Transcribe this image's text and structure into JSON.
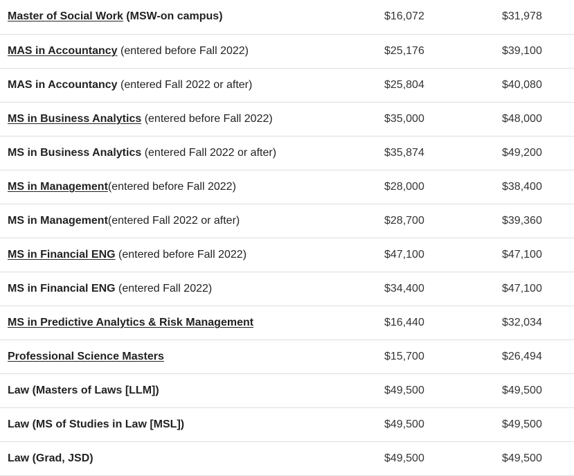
{
  "rows": [
    {
      "name": "Master of Social Work",
      "linked": true,
      "note": " (MSW-on campus)",
      "note_bold": true,
      "note_underlined": false,
      "resident": "$16,072",
      "nonresident": "$31,978"
    },
    {
      "name": "MAS in Accountancy",
      "linked": true,
      "note": " (entered before Fall 2022)",
      "note_bold": false,
      "note_underlined": false,
      "resident": "$25,176",
      "nonresident": "$39,100"
    },
    {
      "name": "MAS in Accountancy",
      "linked": false,
      "note": " (entered Fall 2022 or after)",
      "note_bold": false,
      "note_underlined": false,
      "resident": "$25,804",
      "nonresident": "$40,080"
    },
    {
      "name": "MS in Business Analytics",
      "linked": true,
      "note": " (entered before Fall 2022)",
      "note_bold": false,
      "note_underlined": false,
      "resident": "$35,000",
      "nonresident": "$48,000"
    },
    {
      "name": "MS in Business Analytics",
      "linked": false,
      "note": " (entered Fall 2022 or after)",
      "note_bold": false,
      "note_underlined": false,
      "resident": "$35,874",
      "nonresident": "$49,200"
    },
    {
      "name": "MS in Management",
      "linked": true,
      "note": "(entered before Fall 2022)",
      "note_bold": false,
      "note_underlined": false,
      "resident": "$28,000",
      "nonresident": "$38,400"
    },
    {
      "name": "MS in Management",
      "linked": false,
      "note": "(entered Fall 2022 or after)",
      "note_bold": false,
      "note_underlined": false,
      "resident": "$28,700",
      "nonresident": "$39,360"
    },
    {
      "name": "MS in Financial ENG",
      "linked": true,
      "note": " (entered before Fall 2022)",
      "note_bold": false,
      "note_underlined": false,
      "resident": "$47,100",
      "nonresident": "$47,100"
    },
    {
      "name": "MS in Financial ENG",
      "linked": false,
      "note": " (entered Fall 2022)",
      "note_bold": false,
      "note_underlined": false,
      "resident": "$34,400",
      "nonresident": "$47,100"
    },
    {
      "name": "MS in Predictive Analytics & Risk Management",
      "linked": true,
      "note": "",
      "note_bold": false,
      "note_underlined": false,
      "resident": "$16,440",
      "nonresident": "$32,034"
    },
    {
      "name": "Professional Science Masters",
      "linked": true,
      "note": "",
      "note_bold": false,
      "note_underlined": false,
      "resident": "$15,700",
      "nonresident": "$26,494"
    },
    {
      "name": "Law (Masters of Laws [LLM])",
      "linked": false,
      "note": "",
      "note_bold": false,
      "note_underlined": false,
      "resident": "$49,500",
      "nonresident": "$49,500"
    },
    {
      "name": "Law (MS of Studies in Law [MSL])",
      "linked": false,
      "note": "",
      "note_bold": false,
      "note_underlined": false,
      "resident": "$49,500",
      "nonresident": "$49,500"
    },
    {
      "name": "Law (Grad, JSD)",
      "linked": false,
      "note": "",
      "note_bold": false,
      "note_underlined": false,
      "resident": "$49,500",
      "nonresident": "$49,500"
    }
  ]
}
